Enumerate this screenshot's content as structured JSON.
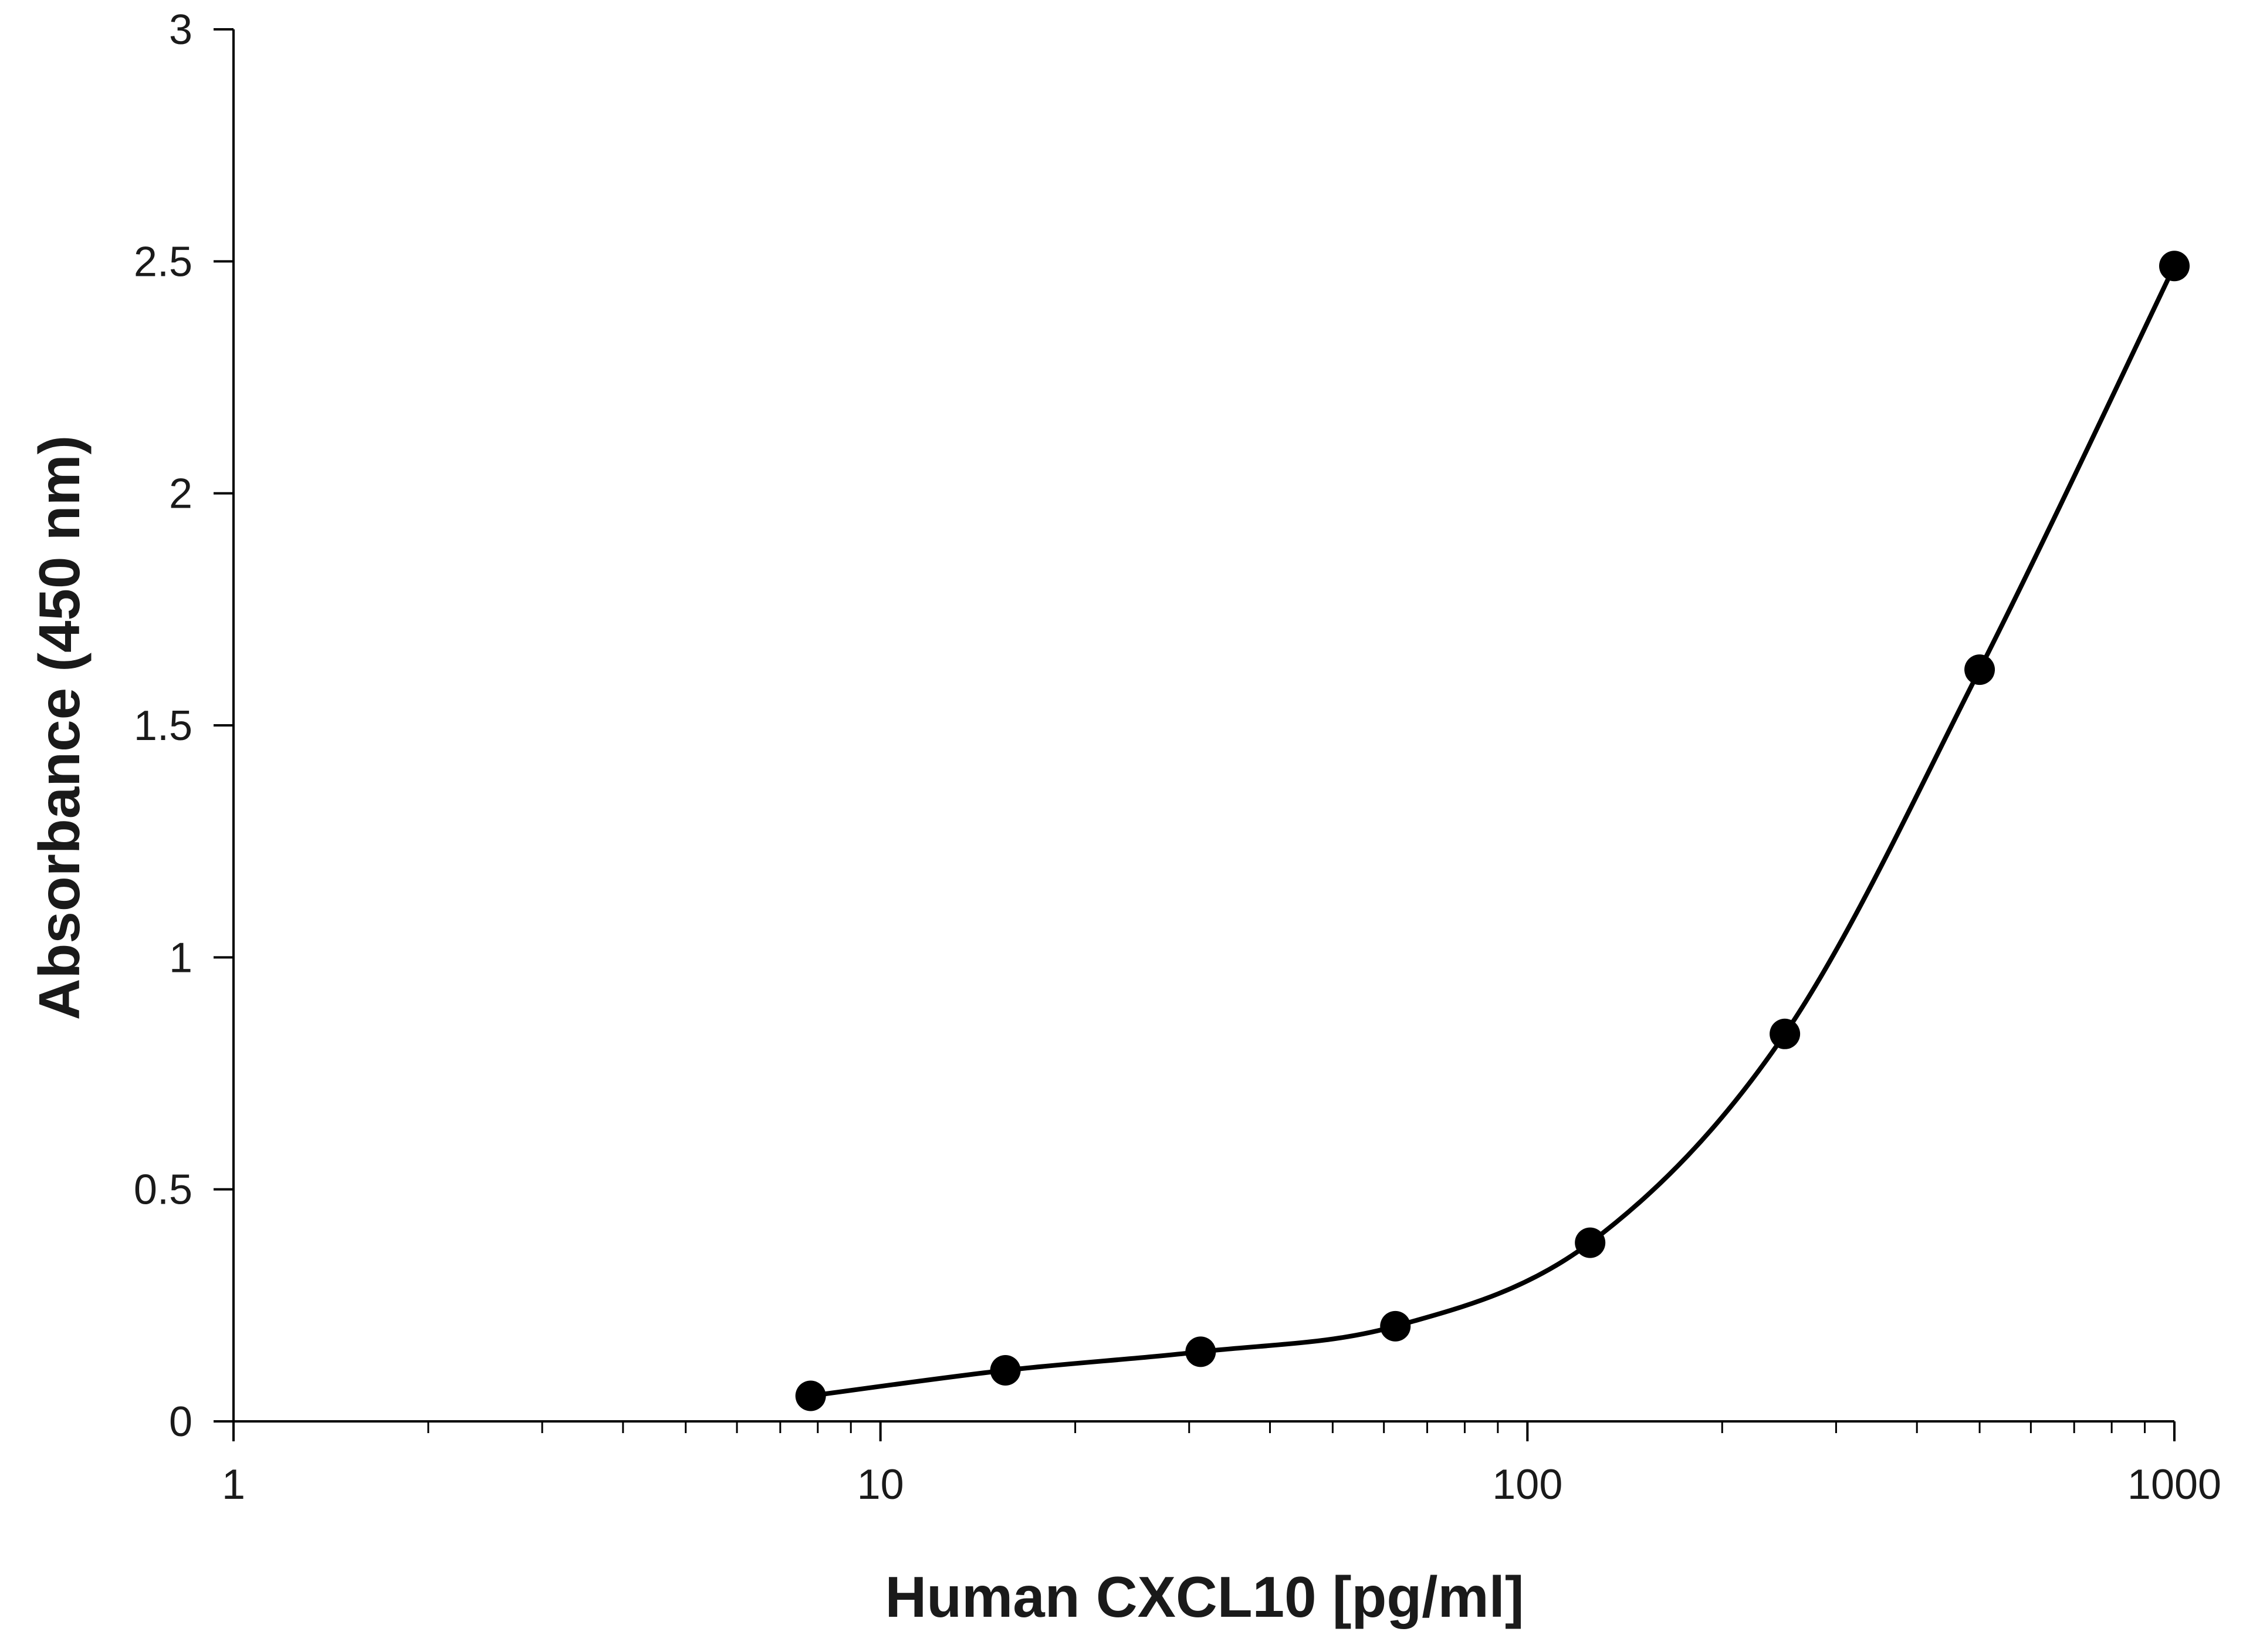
{
  "chart_data": {
    "type": "scatter",
    "title": "",
    "xlabel": "Human CXCL10 [pg/ml]",
    "ylabel": "Absorbance (450 nm)",
    "x_scale": "log",
    "xlim": [
      1,
      1000
    ],
    "ylim": [
      0,
      3
    ],
    "x_ticks": [
      1,
      10,
      100,
      1000
    ],
    "x_tick_labels": [
      "1",
      "10",
      "100",
      "1000"
    ],
    "y_ticks": [
      0,
      0.5,
      1,
      1.5,
      2,
      2.5,
      3
    ],
    "y_tick_labels": [
      "0",
      "0.5",
      "1",
      "1.5",
      "2",
      "2.5",
      "3"
    ],
    "grid": false,
    "legend": "none",
    "series": [
      {
        "x": [
          7.8,
          15.6,
          31.25,
          62.5,
          125,
          250,
          500,
          1000
        ],
        "y": [
          0.055,
          0.11,
          0.15,
          0.205,
          0.385,
          0.835,
          1.62,
          2.49
        ],
        "line": "smooth",
        "marker": "circle",
        "color": "#000000"
      }
    ]
  }
}
